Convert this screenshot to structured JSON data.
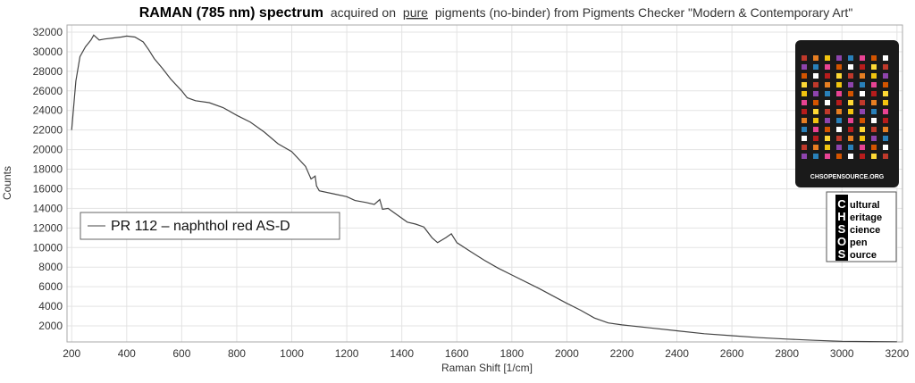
{
  "chart_data": {
    "type": "line",
    "title": [
      "RAMAN (785 nm) spectrum",
      "acquired on",
      "pure",
      "pigments (no-binder) from Pigments Checker \"Modern & Contemporary Art\""
    ],
    "x_label": "Raman Shift [1/cm]",
    "y_label": "Counts",
    "x": [
      200,
      215,
      230,
      250,
      270,
      280,
      300,
      320,
      350,
      380,
      400,
      430,
      460,
      480,
      500,
      530,
      560,
      600,
      620,
      650,
      700,
      750,
      800,
      850,
      900,
      950,
      1000,
      1050,
      1070,
      1085,
      1090,
      1100,
      1150,
      1200,
      1230,
      1270,
      1300,
      1320,
      1330,
      1350,
      1380,
      1420,
      1450,
      1480,
      1510,
      1530,
      1560,
      1580,
      1600,
      1650,
      1700,
      1750,
      1800,
      1900,
      2000,
      2050,
      2100,
      2150,
      2200,
      2300,
      2400,
      2500,
      2600,
      2700,
      2800,
      2900,
      3000,
      3100,
      3200
    ],
    "series": [
      {
        "name": "PR 112 – naphthol red AS-D",
        "color": "#444444",
        "values": [
          22000,
          27000,
          29500,
          30500,
          31200,
          31700,
          31200,
          31300,
          31400,
          31500,
          31600,
          31500,
          31000,
          30200,
          29300,
          28300,
          27200,
          26000,
          25300,
          25000,
          24800,
          24300,
          23500,
          22800,
          21800,
          20600,
          19800,
          18300,
          17000,
          17300,
          16300,
          15800,
          15500,
          15200,
          14800,
          14600,
          14400,
          14900,
          13900,
          14000,
          13400,
          12600,
          12400,
          12100,
          11000,
          10500,
          11000,
          11400,
          10500,
          9600,
          8700,
          7900,
          7200,
          5800,
          4300,
          3600,
          2800,
          2300,
          2100,
          1800,
          1500,
          1200,
          1000,
          800,
          650,
          520,
          420,
          400,
          380
        ]
      }
    ],
    "xlim": [
      183,
      3220
    ],
    "ylim": [
      360,
      32730
    ],
    "xticks": [
      200,
      400,
      600,
      800,
      1000,
      1200,
      1400,
      1600,
      1800,
      2000,
      2200,
      2400,
      2600,
      2800,
      3000,
      3200
    ],
    "yticks": [
      2000,
      4000,
      6000,
      8000,
      10000,
      12000,
      14000,
      16000,
      18000,
      20000,
      22000,
      24000,
      26000,
      28000,
      30000,
      32000
    ],
    "grid": true,
    "logo_card_text": "CHSOPENSOURCE.ORG",
    "logo_letters": [
      "C",
      "H",
      "S",
      "O",
      "S"
    ],
    "logo_words": [
      "ultural",
      "eritage",
      "cience",
      "pen",
      "ource"
    ]
  }
}
